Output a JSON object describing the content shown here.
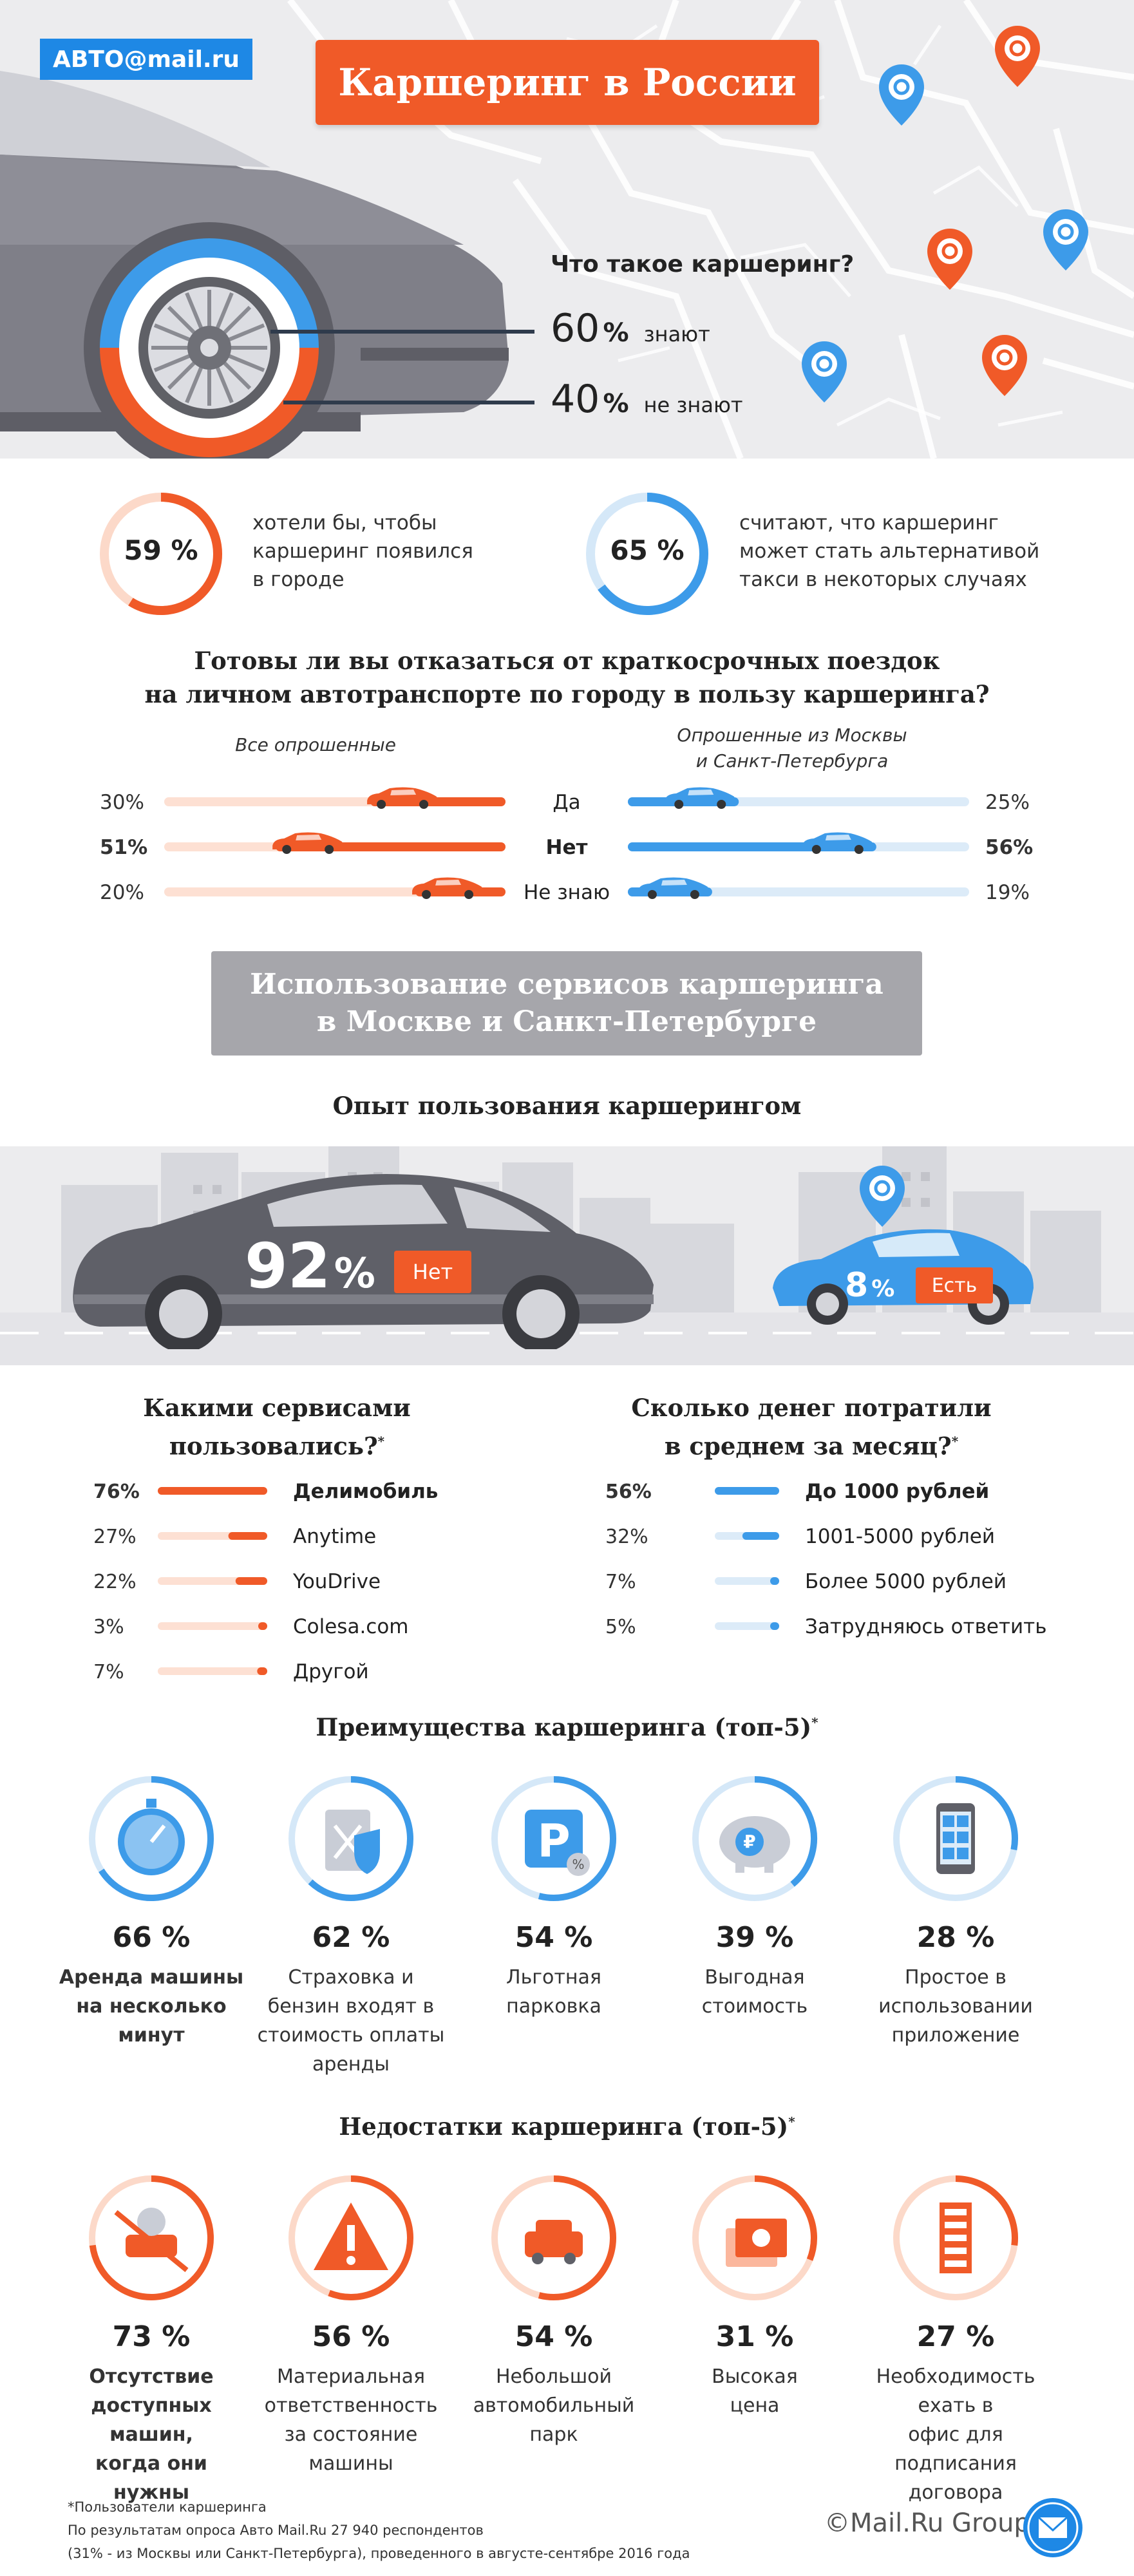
{
  "brand": {
    "logo": "АВТО@mail.ru",
    "footer_logo": "©Mail.Ru Group",
    "colors": {
      "orange": "#f05a28",
      "blue": "#3d9be9",
      "gray": "#a6a6ab"
    }
  },
  "title": "Каршеринг в России",
  "awareness": {
    "question": "Что такое каршеринг?",
    "items": [
      {
        "value": "60",
        "unit": "%",
        "label": "знают"
      },
      {
        "value": "40",
        "unit": "%",
        "label": "не знают"
      }
    ]
  },
  "top_stats": [
    {
      "value": "59 %",
      "text": [
        "хотели бы, чтобы",
        "каршеринг появился",
        "в городе"
      ],
      "color": "#f05a28",
      "fraction": 0.59
    },
    {
      "value": "65 %",
      "text": [
        "считают, что каршеринг",
        "может стать альтернативой",
        "такси в некоторых случаях"
      ],
      "color": "#3d9be9",
      "fraction": 0.65
    }
  ],
  "ready": {
    "question": [
      "Готовы ли вы отказаться от краткосрочных поездок",
      "на личном автотранспорте по городу в пользу каршеринга?"
    ],
    "left_header": "Все опрошенные",
    "right_header": [
      "Опрошенные из Москвы",
      "и Санкт-Петербурга"
    ]
  },
  "usage": {
    "badge": [
      "Использование сервисов каршеринга",
      "в Москве и Санкт-Петербурге"
    ],
    "title": "Опыт пользования каршерингом",
    "no_value": "92",
    "no_unit": "%",
    "no_label": "Нет",
    "yes_value": "8",
    "yes_unit": "%",
    "yes_label": "Есть"
  },
  "services": {
    "title": [
      "Какими сервисами",
      "пользовались?"
    ],
    "star": "*"
  },
  "spend": {
    "title": [
      "Сколько денег потратили",
      "в среднем за месяц?"
    ],
    "star": "*"
  },
  "advantages": {
    "title": "Преимущества каршеринга (топ-5)",
    "star": "*",
    "items": [
      {
        "value": "66 %",
        "text": [
          "Аренда машины",
          "на несколько",
          "минут"
        ],
        "bold": true,
        "icon": "stopwatch-icon",
        "fraction": 0.66
      },
      {
        "value": "62 %",
        "text": [
          "Страховка и",
          "бензин входят в",
          "стоимость оплаты",
          "аренды"
        ],
        "bold": false,
        "icon": "fuel-shield-icon",
        "fraction": 0.62
      },
      {
        "value": "54 %",
        "text": [
          "Льготная",
          "парковка"
        ],
        "bold": false,
        "icon": "parking-icon",
        "fraction": 0.54
      },
      {
        "value": "39 %",
        "text": [
          "Выгодная",
          "стоимость"
        ],
        "bold": false,
        "icon": "piggy-bank-icon",
        "fraction": 0.39
      },
      {
        "value": "28 %",
        "text": [
          "Простое в",
          "использовании",
          "приложение"
        ],
        "bold": false,
        "icon": "phone-app-icon",
        "fraction": 0.28
      }
    ]
  },
  "disadvantages": {
    "title": "Недостатки каршеринга (топ-5)",
    "star": "*",
    "items": [
      {
        "value": "73 %",
        "text": [
          "Отсутствие",
          "доступных машин,",
          "когда они нужны"
        ],
        "bold": true,
        "icon": "no-car-icon",
        "fraction": 0.73
      },
      {
        "value": "56 %",
        "text": [
          "Материальная",
          "ответственность",
          "за состояние",
          "машины"
        ],
        "bold": false,
        "icon": "warning-icon",
        "fraction": 0.56
      },
      {
        "value": "54 %",
        "text": [
          "Небольшой",
          "автомобильный",
          "парк"
        ],
        "bold": false,
        "icon": "cars-icon",
        "fraction": 0.54
      },
      {
        "value": "31 %",
        "text": [
          "Высокая",
          "цена"
        ],
        "bold": false,
        "icon": "money-icon",
        "fraction": 0.31
      },
      {
        "value": "27 %",
        "text": [
          "Необходимость ехать в",
          "офис для подписания",
          "договора"
        ],
        "bold": false,
        "icon": "office-icon",
        "fraction": 0.27
      }
    ]
  },
  "footnote": [
    "*Пользователи каршеринга",
    "По результатам опроса Авто Mail.Ru 27 940 респондентов",
    "(31% - из Москвы или Санкт-Петербурга), проведенного в августе-сентябре 2016 года"
  ],
  "chart_data": [
    {
      "type": "bar",
      "name": "ready_all",
      "categories": [
        "Да",
        "Нет",
        "Не знаю"
      ],
      "labels": [
        "30%",
        "51%",
        "20%"
      ],
      "values": [
        30,
        51,
        20
      ],
      "bold": [
        false,
        true,
        false
      ]
    },
    {
      "type": "bar",
      "name": "ready_msk",
      "categories": [
        "Да",
        "Нет",
        "Не знаю"
      ],
      "labels": [
        "25%",
        "56%",
        "19%"
      ],
      "values": [
        25,
        56,
        19
      ],
      "bold": [
        false,
        true,
        false
      ]
    },
    {
      "type": "bar",
      "name": "services",
      "categories": [
        "Делимобиль",
        "Anytime",
        "YouDrive",
        "Colesa.com",
        "Другой"
      ],
      "labels": [
        "76%",
        "27%",
        "22%",
        "3%",
        "7%"
      ],
      "values": [
        76,
        27,
        22,
        3,
        7
      ],
      "bold": [
        true,
        false,
        false,
        false,
        false
      ]
    },
    {
      "type": "bar",
      "name": "spend",
      "categories": [
        "До 1000 рублей",
        "1001-5000 рублей",
        "Более 5000 рублей",
        "Затрудняюсь ответить"
      ],
      "labels": [
        "56%",
        "32%",
        "7%",
        "5%"
      ],
      "values": [
        56,
        32,
        7,
        5
      ],
      "bold": [
        true,
        false,
        false,
        false
      ]
    }
  ]
}
